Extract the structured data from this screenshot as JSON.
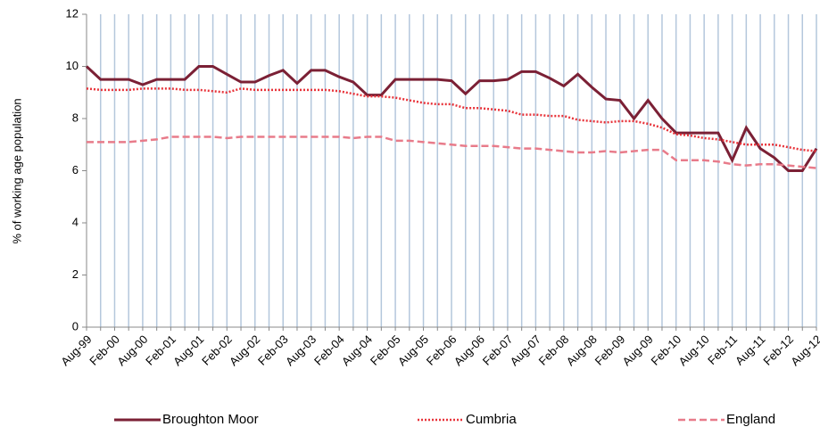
{
  "chart_data": {
    "type": "line",
    "y_label": "% of working age population",
    "categories": [
      "Aug-99",
      null,
      "Feb-00",
      null,
      "Aug-00",
      null,
      "Feb-01",
      null,
      "Aug-01",
      null,
      "Feb-02",
      null,
      "Aug-02",
      null,
      "Feb-03",
      null,
      "Aug-03",
      null,
      "Feb-04",
      null,
      "Aug-04",
      null,
      "Feb-05",
      null,
      "Aug-05",
      null,
      "Feb-06",
      null,
      "Aug-06",
      null,
      "Feb-07",
      null,
      "Aug-07",
      null,
      "Feb-08",
      null,
      "Aug-08",
      null,
      "Feb-09",
      null,
      "Aug-09",
      null,
      "Feb-10",
      null,
      "Aug-10",
      null,
      "Feb-11",
      null,
      "Aug-11",
      null,
      "Feb-12",
      null,
      "Aug-12"
    ],
    "series": [
      {
        "name": "Broughton Moor",
        "color": "#7b2035",
        "dash": "solid",
        "values": [
          10.0,
          9.5,
          9.5,
          9.5,
          9.3,
          9.5,
          9.5,
          9.5,
          10.0,
          10.0,
          9.7,
          9.4,
          9.4,
          9.65,
          9.85,
          9.35,
          9.85,
          9.85,
          9.6,
          9.4,
          8.9,
          8.9,
          9.5,
          9.5,
          9.5,
          9.5,
          9.45,
          8.95,
          9.45,
          9.45,
          9.5,
          9.8,
          9.8,
          9.55,
          9.25,
          9.7,
          9.2,
          8.75,
          8.7,
          8.0,
          8.7,
          8.0,
          7.45,
          7.45,
          7.45,
          7.45,
          6.4,
          7.65,
          6.85,
          6.5,
          6.0,
          6.0,
          6.85
        ]
      },
      {
        "name": "Cumbria",
        "color": "#e8333a",
        "dash": "dotted",
        "values": [
          9.15,
          9.1,
          9.1,
          9.1,
          9.15,
          9.15,
          9.15,
          9.1,
          9.1,
          9.05,
          9.0,
          9.15,
          9.1,
          9.1,
          9.1,
          9.1,
          9.1,
          9.1,
          9.05,
          8.95,
          8.85,
          8.85,
          8.8,
          8.7,
          8.6,
          8.55,
          8.55,
          8.4,
          8.4,
          8.35,
          8.3,
          8.15,
          8.15,
          8.1,
          8.1,
          7.95,
          7.9,
          7.85,
          7.9,
          7.9,
          7.8,
          7.65,
          7.4,
          7.35,
          7.25,
          7.2,
          7.1,
          7.0,
          7.0,
          7.0,
          6.9,
          6.8,
          6.75
        ]
      },
      {
        "name": "England",
        "color": "#e87b8a",
        "dash": "dashed",
        "values": [
          7.1,
          7.1,
          7.1,
          7.1,
          7.15,
          7.2,
          7.3,
          7.3,
          7.3,
          7.3,
          7.25,
          7.3,
          7.3,
          7.3,
          7.3,
          7.3,
          7.3,
          7.3,
          7.3,
          7.25,
          7.3,
          7.3,
          7.15,
          7.15,
          7.1,
          7.05,
          7.0,
          6.95,
          6.95,
          6.95,
          6.9,
          6.85,
          6.85,
          6.8,
          6.75,
          6.7,
          6.7,
          6.75,
          6.7,
          6.75,
          6.8,
          6.8,
          6.4,
          6.4,
          6.4,
          6.35,
          6.25,
          6.2,
          6.25,
          6.25,
          6.2,
          6.15,
          6.1
        ]
      }
    ],
    "ylim": [
      0,
      12
    ],
    "yticks": [
      0,
      2,
      4,
      6,
      8,
      10,
      12
    ],
    "x_grid": true,
    "legend": "bottom"
  }
}
